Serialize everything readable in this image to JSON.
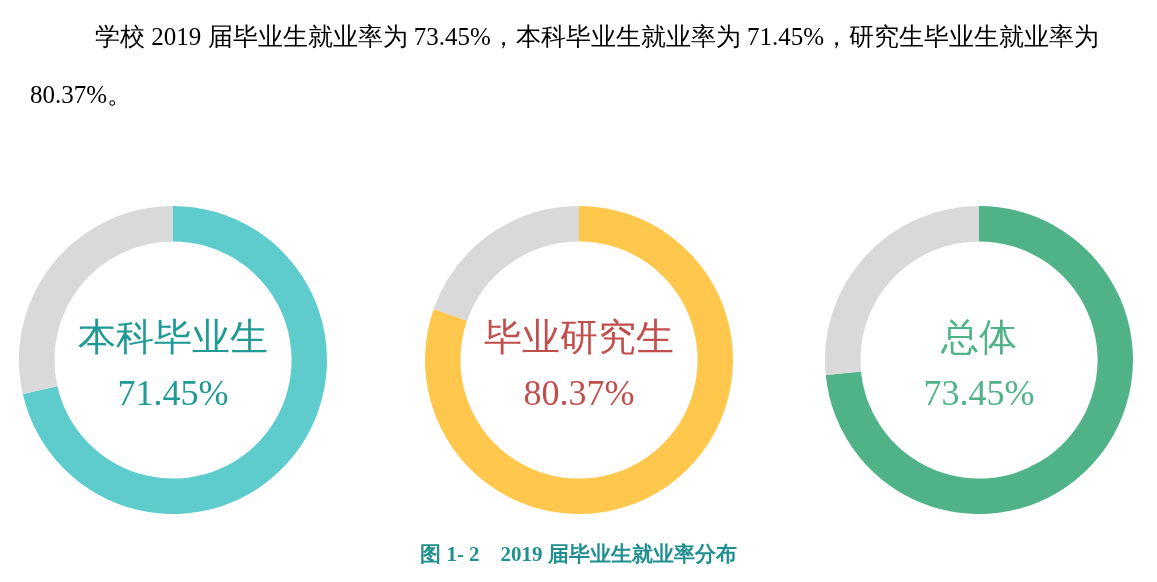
{
  "chart_data": [
    {
      "type": "donut",
      "title": "本科毕业生",
      "categories": [
        null,
        null
      ],
      "values": [
        71.45,
        28.55
      ],
      "colors": [
        "#5ecccc",
        "#d9d9d9"
      ],
      "value_labels": [
        "71.45%",
        null
      ],
      "legend": false,
      "annotations": [
        "学校 2019 届毕业生就业率为 73.45%，本科毕业生就业率为 71.45%，研究生毕业生就业率为 80.37%。",
        "图 1- 2　2019 届毕业生就业率分布"
      ]
    },
    {
      "type": "donut",
      "title": "毕业研究生",
      "categories": [
        null,
        null
      ],
      "values": [
        80.37,
        19.63
      ],
      "colors": [
        "#ffc84c",
        "#d9d9d9"
      ],
      "value_labels": [
        "80.37%",
        null
      ],
      "legend": false
    },
    {
      "type": "donut",
      "title": "总体",
      "categories": [
        null,
        null
      ],
      "values": [
        73.45,
        26.55
      ],
      "colors": [
        "#4fb387",
        "#d9d9d9"
      ],
      "value_labels": [
        "73.45%",
        null
      ],
      "legend": false
    }
  ]
}
